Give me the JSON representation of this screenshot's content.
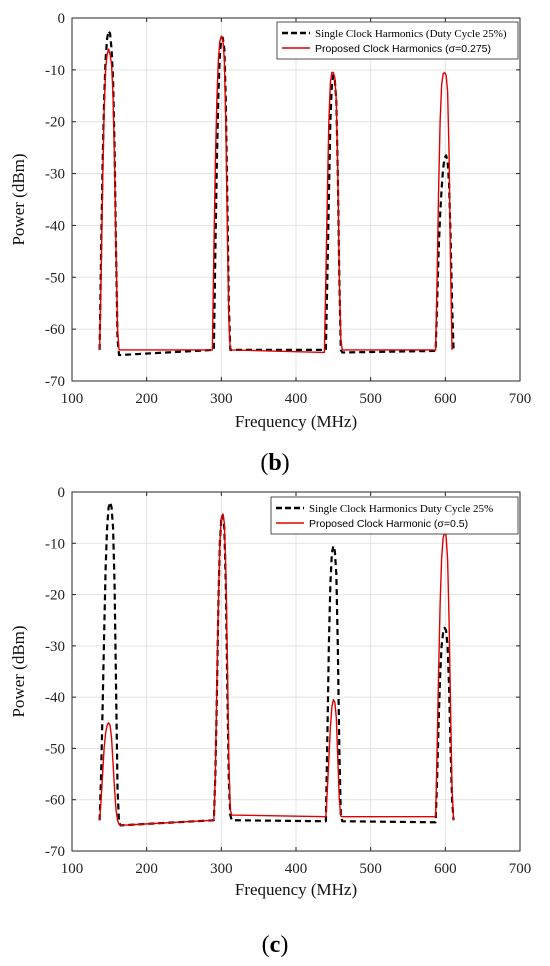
{
  "chart_data": [
    {
      "id": "b",
      "type": "line",
      "panel_label": "b",
      "xlabel": "Frequency (MHz)",
      "ylabel": "Power (dBm)",
      "xlim": [
        100,
        700
      ],
      "ylim": [
        -70,
        0
      ],
      "xticks": [
        100,
        200,
        300,
        400,
        500,
        600,
        700
      ],
      "yticks": [
        0,
        -10,
        -20,
        -30,
        -40,
        -50,
        -60,
        -70
      ],
      "grid": true,
      "legend_position": "top-right",
      "series": [
        {
          "name": "Single Clock Harmonics (Duty Cycle 25%)",
          "color": "#000000",
          "style": "dashed",
          "x": [
            137,
            139,
            141,
            143,
            145,
            147,
            149,
            151,
            153,
            155,
            157,
            159,
            161,
            163,
            290,
            292,
            294,
            296,
            298,
            300,
            302,
            304,
            306,
            308,
            310,
            312,
            440,
            442,
            444,
            446,
            448,
            450,
            452,
            454,
            456,
            458,
            460,
            462,
            587,
            589,
            591,
            593,
            595,
            597,
            599,
            601,
            603,
            605,
            607,
            609,
            611
          ],
          "values": [
            -64,
            -45,
            -28,
            -16,
            -8,
            -4,
            -2.5,
            -3,
            -6,
            -12,
            -25,
            -45,
            -62,
            -65,
            -64,
            -45,
            -28,
            -15,
            -7,
            -4,
            -3.8,
            -6,
            -16,
            -35,
            -55,
            -64,
            -64,
            -50,
            -35,
            -20,
            -13,
            -11,
            -12,
            -16,
            -30,
            -50,
            -64,
            -64.5,
            -64.2,
            -55,
            -45,
            -38,
            -33,
            -29,
            -27,
            -26.5,
            -27.5,
            -32,
            -42,
            -55,
            -64
          ]
        },
        {
          "name": "Proposed Clock Harmonics (σ=0.275)",
          "color": "#e00000",
          "style": "solid",
          "x": [
            137,
            139,
            141,
            143,
            145,
            147,
            149,
            151,
            153,
            155,
            157,
            159,
            161,
            163,
            288,
            290,
            292,
            294,
            296,
            298,
            300,
            302,
            304,
            306,
            308,
            310,
            312,
            438,
            440,
            442,
            444,
            446,
            448,
            450,
            452,
            454,
            456,
            458,
            460,
            462,
            587,
            589,
            591,
            593,
            595,
            597,
            599,
            601,
            603,
            605,
            607,
            609
          ],
          "values": [
            -64,
            -50,
            -32,
            -18,
            -10,
            -7,
            -6,
            -7,
            -9,
            -15,
            -28,
            -45,
            -60,
            -64,
            -64,
            -45,
            -28,
            -16,
            -8,
            -4.5,
            -3.5,
            -4,
            -8,
            -20,
            -40,
            -58,
            -64,
            -64.5,
            -50,
            -34,
            -20,
            -12.5,
            -10.5,
            -10.5,
            -11.5,
            -16,
            -30,
            -50,
            -62,
            -64,
            -64,
            -50,
            -33,
            -20,
            -13,
            -10.8,
            -10.5,
            -11,
            -14,
            -26,
            -48,
            -64
          ]
        }
      ]
    },
    {
      "id": "c",
      "type": "line",
      "panel_label": "c",
      "xlabel": "Frequency (MHz)",
      "ylabel": "Power (dBm)",
      "xlim": [
        100,
        700
      ],
      "ylim": [
        -70,
        0
      ],
      "xticks": [
        100,
        200,
        300,
        400,
        500,
        600,
        700
      ],
      "yticks": [
        0,
        -10,
        -20,
        -30,
        -40,
        -50,
        -60,
        -70
      ],
      "grid": true,
      "legend_position": "top-right",
      "series": [
        {
          "name": "Single Clock Harmonics Duty Cycle 25%",
          "color": "#000000",
          "style": "dashed",
          "x": [
            137,
            139,
            141,
            143,
            145,
            147,
            149,
            151,
            153,
            155,
            157,
            159,
            161,
            163,
            165,
            290,
            292,
            294,
            296,
            298,
            300,
            302,
            304,
            306,
            308,
            310,
            312,
            314,
            440,
            442,
            444,
            446,
            448,
            450,
            452,
            454,
            456,
            458,
            460,
            462,
            587,
            589,
            591,
            593,
            595,
            597,
            599,
            601,
            603,
            605,
            607,
            609,
            611
          ],
          "values": [
            -64,
            -55,
            -42,
            -28,
            -15,
            -7,
            -3,
            -2,
            -3,
            -7,
            -18,
            -38,
            -58,
            -64.5,
            -65,
            -64,
            -55,
            -40,
            -22,
            -10,
            -5,
            -4.5,
            -7,
            -18,
            -38,
            -56,
            -63,
            -64,
            -64.2,
            -48,
            -30,
            -18,
            -12,
            -10.5,
            -11.5,
            -16,
            -30,
            -50,
            -63,
            -64.2,
            -64.4,
            -56,
            -45,
            -36,
            -30,
            -27.5,
            -26.5,
            -27,
            -30,
            -38,
            -50,
            -60,
            -64
          ]
        },
        {
          "name": "Proposed Clock Harmonic (σ=0.5)",
          "color": "#e00000",
          "style": "solid",
          "x": [
            137,
            139,
            141,
            143,
            145,
            147,
            149,
            151,
            153,
            155,
            157,
            159,
            161,
            163,
            165,
            290,
            292,
            294,
            296,
            298,
            300,
            302,
            304,
            306,
            308,
            310,
            312,
            314,
            440,
            442,
            444,
            446,
            448,
            450,
            452,
            454,
            456,
            458,
            460,
            462,
            587,
            589,
            591,
            593,
            595,
            597,
            599,
            601,
            603,
            605,
            607,
            609,
            611
          ],
          "values": [
            -64,
            -60,
            -55,
            -50,
            -47,
            -45.5,
            -45,
            -45.5,
            -48,
            -53,
            -58,
            -62,
            -64,
            -64.8,
            -65,
            -64,
            -55,
            -38,
            -22,
            -10,
            -5,
            -4.3,
            -6,
            -15,
            -32,
            -52,
            -62,
            -63,
            -63.3,
            -58,
            -52,
            -46,
            -42,
            -40.5,
            -41,
            -44,
            -52,
            -60,
            -63.2,
            -63.3,
            -63.3,
            -50,
            -35,
            -22,
            -13,
            -9,
            -7.8,
            -8.5,
            -13,
            -25,
            -42,
            -58,
            -64
          ]
        }
      ]
    }
  ]
}
